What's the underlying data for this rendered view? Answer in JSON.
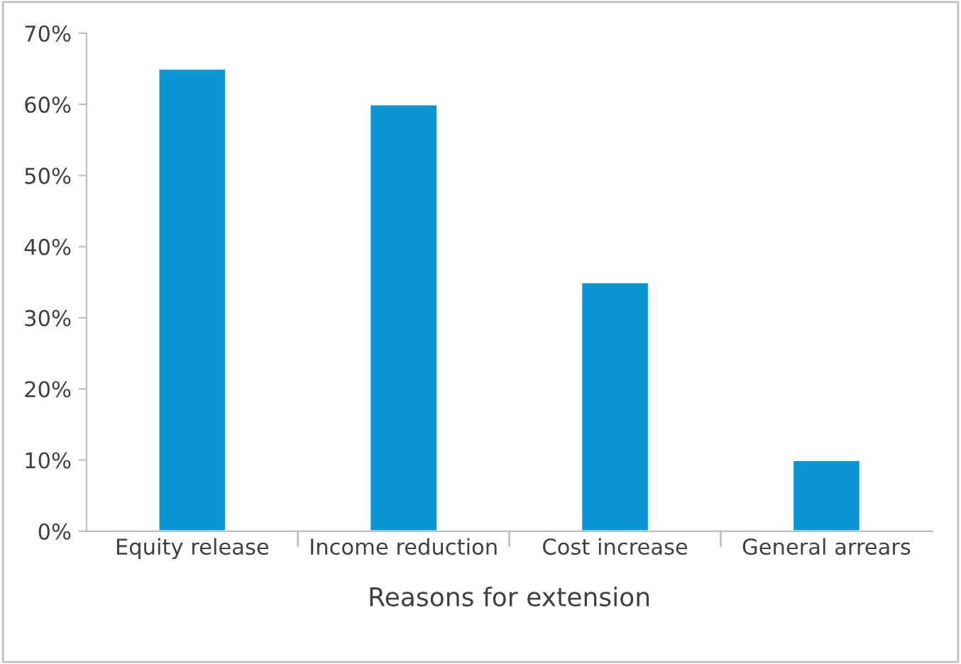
{
  "chart_data": {
    "type": "bar",
    "xlabel": "Reasons for extension",
    "categories": [
      "Equity release",
      "Income reduction",
      "Cost increase",
      "General arrears"
    ],
    "values": [
      65,
      60,
      35,
      10
    ],
    "color": "#0a95d5",
    "ylim": [
      0,
      70
    ],
    "yticks": [
      {
        "value": 0,
        "label": "0%"
      },
      {
        "value": 10,
        "label": "10%"
      },
      {
        "value": 20,
        "label": "20%"
      },
      {
        "value": 30,
        "label": "30%"
      },
      {
        "value": 40,
        "label": "40%"
      },
      {
        "value": 50,
        "label": "50%"
      },
      {
        "value": 60,
        "label": "60%"
      },
      {
        "value": 70,
        "label": "70%"
      }
    ],
    "grid": false,
    "legend": false
  }
}
